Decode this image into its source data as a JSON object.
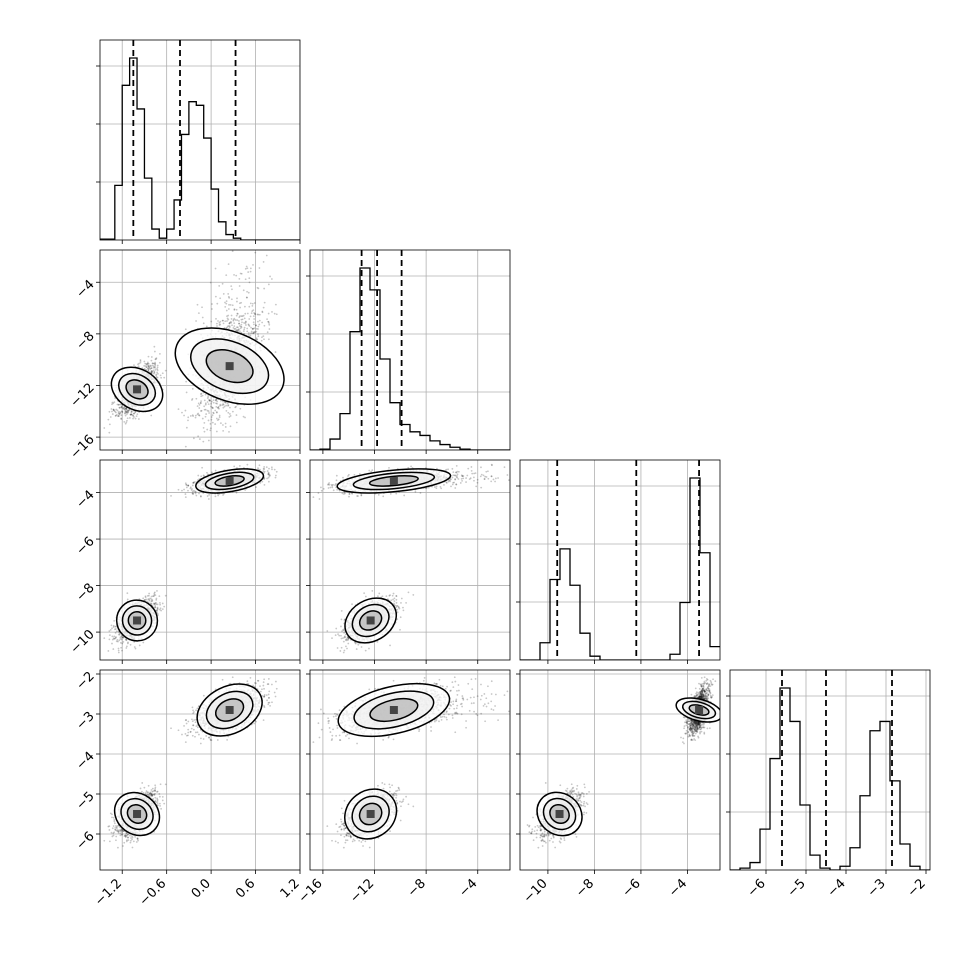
{
  "chart_data": {
    "type": "corner",
    "parameters": [
      {
        "range": [
          -1.5,
          1.2
        ],
        "ticks": [
          -1.2,
          -0.6,
          0.0,
          0.6,
          1.2
        ],
        "tick_labels": [
          "−1.2",
          "−0.6",
          "0.0",
          "0.6",
          "1.2"
        ],
        "quantiles": [
          -1.05,
          -0.42,
          0.33
        ],
        "histogram": {
          "bin_start": -1.5,
          "bin_width": 0.1,
          "counts": [
            0.005,
            0.005,
            0.3,
            0.85,
            1.0,
            0.72,
            0.34,
            0.06,
            0.01,
            0.06,
            0.22,
            0.58,
            0.76,
            0.74,
            0.56,
            0.28,
            0.1,
            0.03,
            0.01,
            0.0,
            0.0,
            0.0,
            0.0,
            0.0,
            0.0,
            0.0,
            0.0
          ]
        }
      },
      {
        "range": [
          -17,
          -1.5
        ],
        "ticks": [
          -16,
          -12,
          -8,
          -4
        ],
        "tick_labels": [
          "−16",
          "−12",
          "−8",
          "−4"
        ],
        "quantiles": [
          -13.0,
          -11.8,
          -9.9
        ],
        "histogram": {
          "bin_start": -17,
          "bin_width": 0.775,
          "counts": [
            0.0,
            0.005,
            0.06,
            0.2,
            0.65,
            1.0,
            0.88,
            0.5,
            0.26,
            0.14,
            0.1,
            0.08,
            0.05,
            0.03,
            0.015,
            0.005,
            0.0,
            0.0,
            0.0,
            0.0
          ]
        }
      },
      {
        "range": [
          -11.2,
          -2.6
        ],
        "ticks": [
          -10,
          -8,
          -6,
          -4
        ],
        "tick_labels": [
          "−10",
          "−8",
          "−6",
          "−4"
        ],
        "quantiles": [
          -9.6,
          -6.2,
          -3.5
        ],
        "histogram": {
          "bin_start": -11.2,
          "bin_width": 0.43,
          "counts": [
            0.0,
            0.0,
            0.09,
            0.42,
            0.58,
            0.39,
            0.14,
            0.02,
            0.0,
            0.0,
            0.0,
            0.0,
            0.0,
            0.0,
            0.0,
            0.03,
            0.3,
            0.95,
            0.56,
            0.07
          ]
        }
      },
      {
        "range": [
          -6.9,
          -1.9
        ],
        "ticks": [
          -6,
          -5,
          -4,
          -3,
          -2
        ],
        "tick_labels": [
          "−6",
          "−5",
          "−4",
          "−3",
          "−2"
        ],
        "quantiles": [
          -5.6,
          -4.5,
          -2.85
        ],
        "histogram": {
          "bin_start": -6.9,
          "bin_width": 0.25,
          "counts": [
            0.0,
            0.01,
            0.04,
            0.22,
            0.6,
            0.98,
            0.8,
            0.35,
            0.08,
            0.01,
            0.0,
            0.02,
            0.12,
            0.4,
            0.75,
            0.8,
            0.48,
            0.14,
            0.02,
            0.0
          ]
        }
      }
    ],
    "components": [
      {
        "means": [
          -1.0,
          -12.3,
          -9.5,
          -5.5
        ],
        "sds": [
          0.13,
          1.0,
          0.42,
          0.28
        ],
        "weight": 0.47
      },
      {
        "means": [
          0.25,
          -10.5,
          -3.5,
          -2.9
        ],
        "sds": [
          0.22,
          2.1,
          0.22,
          0.28
        ],
        "weight": 0.53
      }
    ]
  }
}
